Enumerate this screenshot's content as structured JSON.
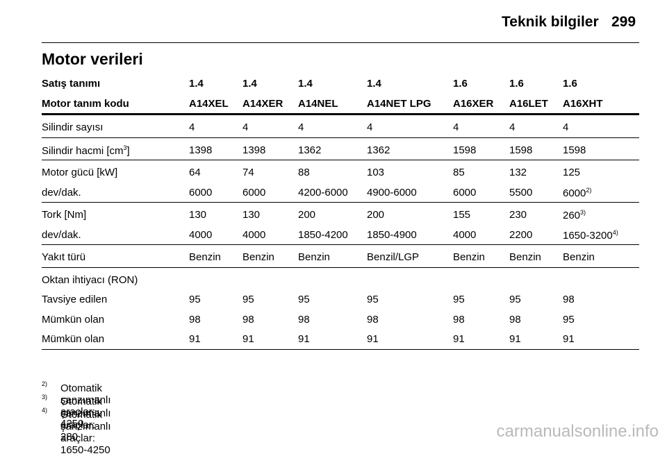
{
  "header": {
    "section": "Teknik bilgiler",
    "page": "299"
  },
  "title": "Motor verileri",
  "table": {
    "head": [
      [
        "Satış tanımı",
        "1.4",
        "1.4",
        "1.4",
        "1.4",
        "1.6",
        "1.6",
        "1.6"
      ],
      [
        "Motor tanım kodu",
        "A14XEL",
        "A14XER",
        "A14NEL",
        "A14NET LPG",
        "A16XER",
        "A16LET",
        "A16XHT"
      ]
    ],
    "groups": [
      [
        [
          "Silindir sayısı",
          "4",
          "4",
          "4",
          "4",
          "4",
          "4",
          "4"
        ]
      ],
      [
        [
          {
            "text": "Silindir hacmi [cm",
            "sup": "3",
            "after": "]"
          },
          "1398",
          "1398",
          "1362",
          "1362",
          "1598",
          "1598",
          "1598"
        ]
      ],
      [
        [
          "Motor gücü [kW]",
          "64",
          "74",
          "88",
          "103",
          "85",
          "132",
          "125"
        ],
        [
          "dev/dak.",
          "6000",
          "6000",
          "4200-6000",
          "4900-6000",
          "6000",
          "5500",
          {
            "text": "6000",
            "sup": "2)"
          }
        ]
      ],
      [
        [
          "Tork [Nm]",
          "130",
          "130",
          "200",
          "200",
          "155",
          "230",
          {
            "text": "260",
            "sup": "3)"
          }
        ],
        [
          "dev/dak.",
          "4000",
          "4000",
          "1850-4200",
          "1850-4900",
          "4000",
          "2200",
          {
            "text": "1650-3200",
            "sup": "4)"
          }
        ]
      ],
      [
        [
          "Yakıt türü",
          "Benzin",
          "Benzin",
          "Benzin",
          "Benzil/LGP",
          "Benzin",
          "Benzin",
          "Benzin"
        ]
      ],
      [
        [
          "Oktan ihtiyacı (RON)"
        ],
        [
          "Tavsiye edilen",
          "95",
          "95",
          "95",
          "95",
          "95",
          "95",
          "98"
        ],
        [
          "Mümkün olan",
          "98",
          "98",
          "98",
          "98",
          "98",
          "98",
          "95"
        ],
        [
          "Mümkün olan",
          "91",
          "91",
          "91",
          "91",
          "91",
          "91",
          "91"
        ]
      ]
    ]
  },
  "footnotes": [
    {
      "mark": "2)",
      "text": "Otomatik şanzımanlı araçlar: 4250"
    },
    {
      "mark": "3)",
      "text": "Otomatik şanzımanlı araçlar: 280"
    },
    {
      "mark": "4)",
      "text": "Otomatik şanzımanlı araçlar: 1650-4250"
    }
  ],
  "watermark": "carmanualsonline.info"
}
